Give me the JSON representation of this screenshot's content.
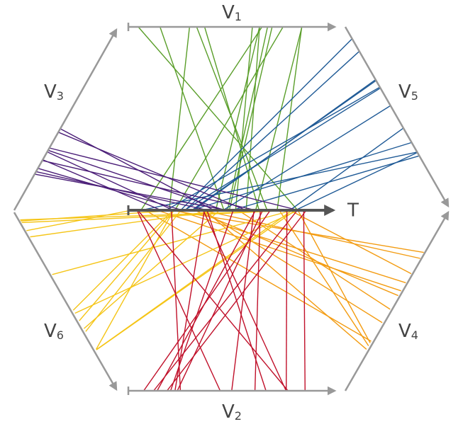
{
  "nodes": [
    {
      "symbol": "V",
      "subscript": "1"
    },
    {
      "symbol": "V",
      "subscript": "2"
    },
    {
      "symbol": "V",
      "subscript": "3"
    },
    {
      "symbol": "V",
      "subscript": "4"
    },
    {
      "symbol": "V",
      "subscript": "5"
    },
    {
      "symbol": "V",
      "subscript": "6"
    }
  ],
  "target": {
    "label": "T"
  }
}
